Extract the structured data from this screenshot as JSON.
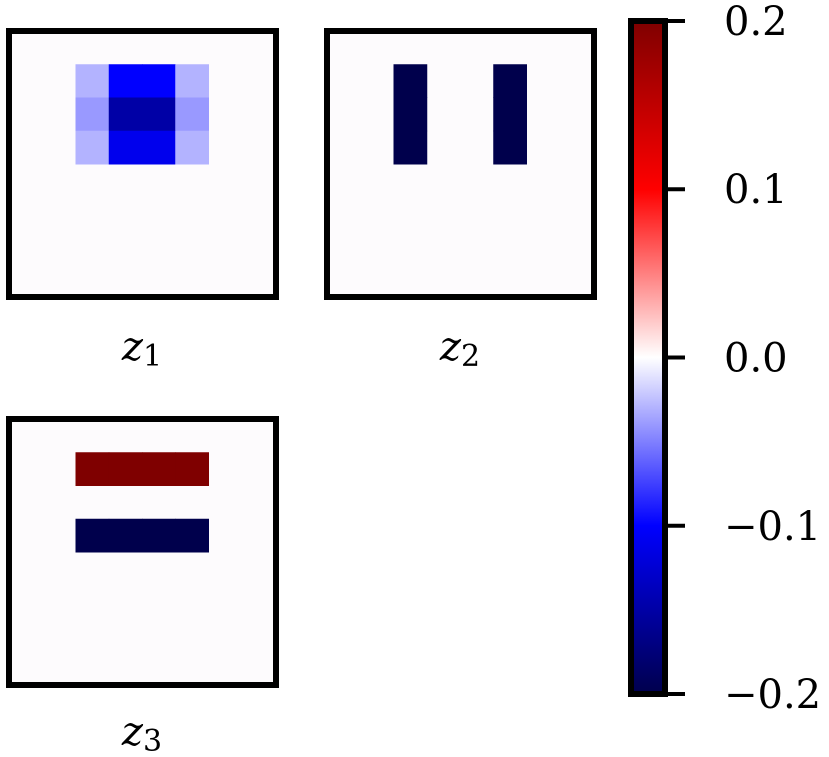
{
  "chart_data": {
    "type": "heatmap",
    "colormap": "seismic",
    "grid_size": [
      8,
      8
    ],
    "panels": [
      {
        "label_base": "z",
        "label_sub": "1",
        "cells": [
          {
            "row": 1,
            "col": 2,
            "value": -0.03
          },
          {
            "row": 1,
            "col": 3,
            "value": -0.1
          },
          {
            "row": 1,
            "col": 4,
            "value": -0.1
          },
          {
            "row": 1,
            "col": 5,
            "value": -0.03
          },
          {
            "row": 2,
            "col": 2,
            "value": -0.04
          },
          {
            "row": 2,
            "col": 3,
            "value": -0.15
          },
          {
            "row": 2,
            "col": 4,
            "value": -0.15
          },
          {
            "row": 2,
            "col": 5,
            "value": -0.04
          },
          {
            "row": 3,
            "col": 2,
            "value": -0.03
          },
          {
            "row": 3,
            "col": 3,
            "value": -0.11
          },
          {
            "row": 3,
            "col": 4,
            "value": -0.11
          },
          {
            "row": 3,
            "col": 5,
            "value": -0.03
          }
        ]
      },
      {
        "label_base": "z",
        "label_sub": "2",
        "cells": [
          {
            "row": 1,
            "col": 2,
            "value": -0.2
          },
          {
            "row": 2,
            "col": 2,
            "value": -0.2
          },
          {
            "row": 3,
            "col": 2,
            "value": -0.2
          },
          {
            "row": 1,
            "col": 5,
            "value": -0.2
          },
          {
            "row": 2,
            "col": 5,
            "value": -0.2
          },
          {
            "row": 3,
            "col": 5,
            "value": -0.2
          }
        ]
      },
      {
        "label_base": "z",
        "label_sub": "3",
        "cells": [
          {
            "row": 1,
            "col": 2,
            "value": 0.2
          },
          {
            "row": 1,
            "col": 3,
            "value": 0.2
          },
          {
            "row": 1,
            "col": 4,
            "value": 0.2
          },
          {
            "row": 1,
            "col": 5,
            "value": 0.2
          },
          {
            "row": 3,
            "col": 2,
            "value": -0.2
          },
          {
            "row": 3,
            "col": 3,
            "value": -0.2
          },
          {
            "row": 3,
            "col": 4,
            "value": -0.2
          },
          {
            "row": 3,
            "col": 5,
            "value": -0.2
          }
        ]
      }
    ],
    "colorbar": {
      "vmin": -0.2,
      "vmax": 0.2,
      "ticks": [
        0.2,
        0.1,
        0.0,
        -0.1,
        -0.2
      ],
      "tick_labels": [
        "0.2",
        "0.1",
        "0.0",
        "−0.1",
        "−0.2"
      ]
    },
    "grid": false
  }
}
